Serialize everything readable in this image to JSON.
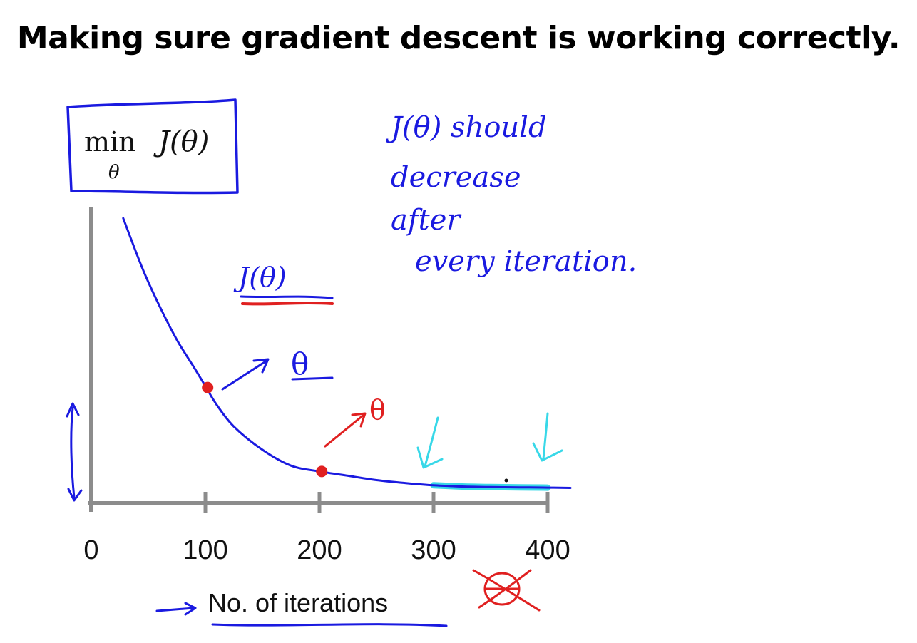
{
  "slide": {
    "title": "Making sure gradient descent is working correctly."
  },
  "objective_box": {
    "min_label": "min",
    "subscript": "θ",
    "expression": "J(θ)"
  },
  "chart_data": {
    "type": "line",
    "title": "",
    "xlabel": "No. of iterations",
    "ylabel": "",
    "xlim": [
      0,
      420
    ],
    "x_ticks": [
      0,
      100,
      200,
      300,
      400
    ],
    "x_tick_labels": [
      "0",
      "100",
      "200",
      "300",
      "400"
    ],
    "grid": false,
    "legend": "none",
    "series": [
      {
        "x": [
          28,
          45,
          60,
          75,
          90,
          100,
          110,
          125,
          150,
          175,
          200,
          225,
          250,
          275,
          300,
          325,
          350,
          375,
          400,
          420
        ],
        "y": [
          0.985,
          0.81,
          0.68,
          0.565,
          0.47,
          0.405,
          0.34,
          0.265,
          0.185,
          0.13,
          0.11,
          0.095,
          0.08,
          0.07,
          0.062,
          0.058,
          0.056,
          0.055,
          0.054,
          0.053
        ]
      }
    ],
    "highlighted_points": [
      {
        "x": 102,
        "y": 0.4
      },
      {
        "x": 202,
        "y": 0.11
      }
    ],
    "colors": {
      "curve": "#1a1ae0",
      "axis": "#8c8c8c",
      "points": "#e02020",
      "highlight": "#38d8e8"
    }
  },
  "annotations": {
    "note_lines": [
      "J(θ) should",
      "decrease",
      "after",
      "every iteration."
    ],
    "j_theta_label": "J(θ)",
    "theta_blue": "θ",
    "theta_red": "θ"
  },
  "colors": {
    "ink_blue": "#1a1ae0",
    "ink_red": "#e02020",
    "ink_cyan": "#38d8e8",
    "axis_gray": "#8c8c8c"
  }
}
